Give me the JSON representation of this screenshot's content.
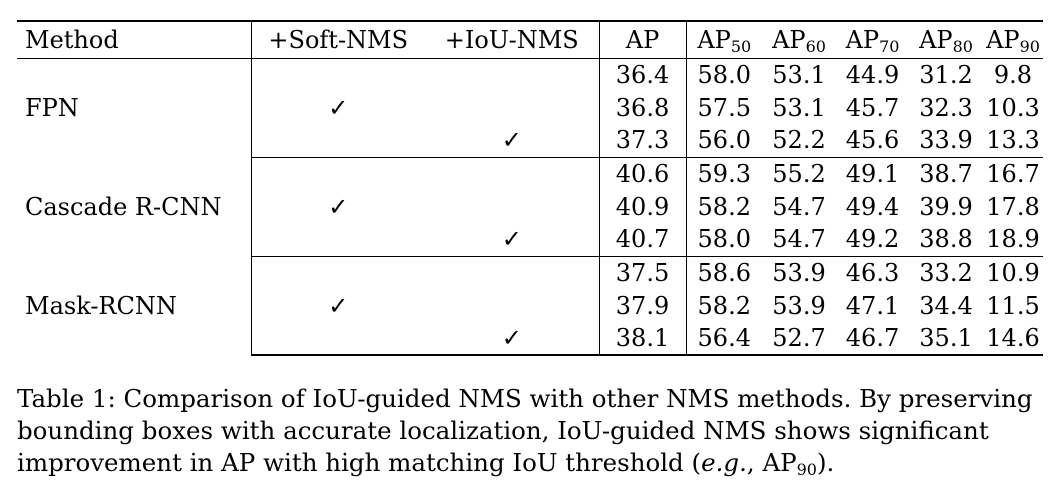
{
  "table": {
    "headers": {
      "method": "Method",
      "soft_nms": "+Soft-NMS",
      "iou_nms": "+IoU-NMS",
      "ap": "AP",
      "ap_main": "AP",
      "sub50": "50",
      "sub60": "60",
      "sub70": "70",
      "sub80": "80",
      "sub90": "90"
    },
    "check_glyph": "✓",
    "groups": [
      {
        "method": "FPN",
        "rows": [
          {
            "soft": "",
            "iou": "",
            "values": [
              "36.4",
              "58.0",
              "53.1",
              "44.9",
              "31.2",
              "9.8"
            ],
            "bold": [
              false,
              true,
              true,
              false,
              false,
              false
            ]
          },
          {
            "soft": "✓",
            "iou": "",
            "values": [
              "36.8",
              "57.5",
              "53.1",
              "45.7",
              "32.3",
              "10.3"
            ],
            "bold": [
              false,
              false,
              true,
              true,
              false,
              false
            ]
          },
          {
            "soft": "",
            "iou": "✓",
            "values": [
              "37.3",
              "56.0",
              "52.2",
              "45.6",
              "33.9",
              "13.3"
            ],
            "bold": [
              true,
              false,
              false,
              false,
              true,
              true
            ]
          }
        ]
      },
      {
        "method": "Cascade R-CNN",
        "rows": [
          {
            "soft": "",
            "iou": "",
            "values": [
              "40.6",
              "59.3",
              "55.2",
              "49.1",
              "38.7",
              "16.7"
            ],
            "bold": [
              false,
              true,
              false,
              false,
              false,
              false
            ]
          },
          {
            "soft": "✓",
            "iou": "",
            "values": [
              "40.9",
              "58.2",
              "54.7",
              "49.4",
              "39.9",
              "17.8"
            ],
            "bold": [
              true,
              false,
              true,
              true,
              true,
              false
            ]
          },
          {
            "soft": "",
            "iou": "✓",
            "values": [
              "40.7",
              "58.0",
              "54.7",
              "49.2",
              "38.8",
              "18.9"
            ],
            "bold": [
              false,
              false,
              true,
              false,
              false,
              true
            ]
          }
        ]
      },
      {
        "method": "Mask-RCNN",
        "rows": [
          {
            "soft": "",
            "iou": "",
            "values": [
              "37.5",
              "58.6",
              "53.9",
              "46.3",
              "33.2",
              "10.9"
            ],
            "bold": [
              false,
              true,
              true,
              false,
              false,
              false
            ]
          },
          {
            "soft": "✓",
            "iou": "",
            "values": [
              "37.9",
              "58.2",
              "53.9",
              "47.1",
              "34.4",
              "11.5"
            ],
            "bold": [
              false,
              false,
              true,
              true,
              false,
              false
            ]
          },
          {
            "soft": "",
            "iou": "✓",
            "values": [
              "38.1",
              "56.4",
              "52.7",
              "46.7",
              "35.1",
              "14.6"
            ],
            "bold": [
              true,
              false,
              false,
              false,
              true,
              true
            ]
          }
        ]
      }
    ]
  },
  "caption": {
    "lead": "Table 1: Comparison of IoU-guided NMS with other NMS methods. By preserving bounding boxes with accurate localization, IoU-guided NMS shows significant improvement in AP with high matching IoU threshold (",
    "eg": "e.g.",
    "comma": ", ",
    "ap": "AP",
    "sub": "90",
    "tail": ")."
  }
}
